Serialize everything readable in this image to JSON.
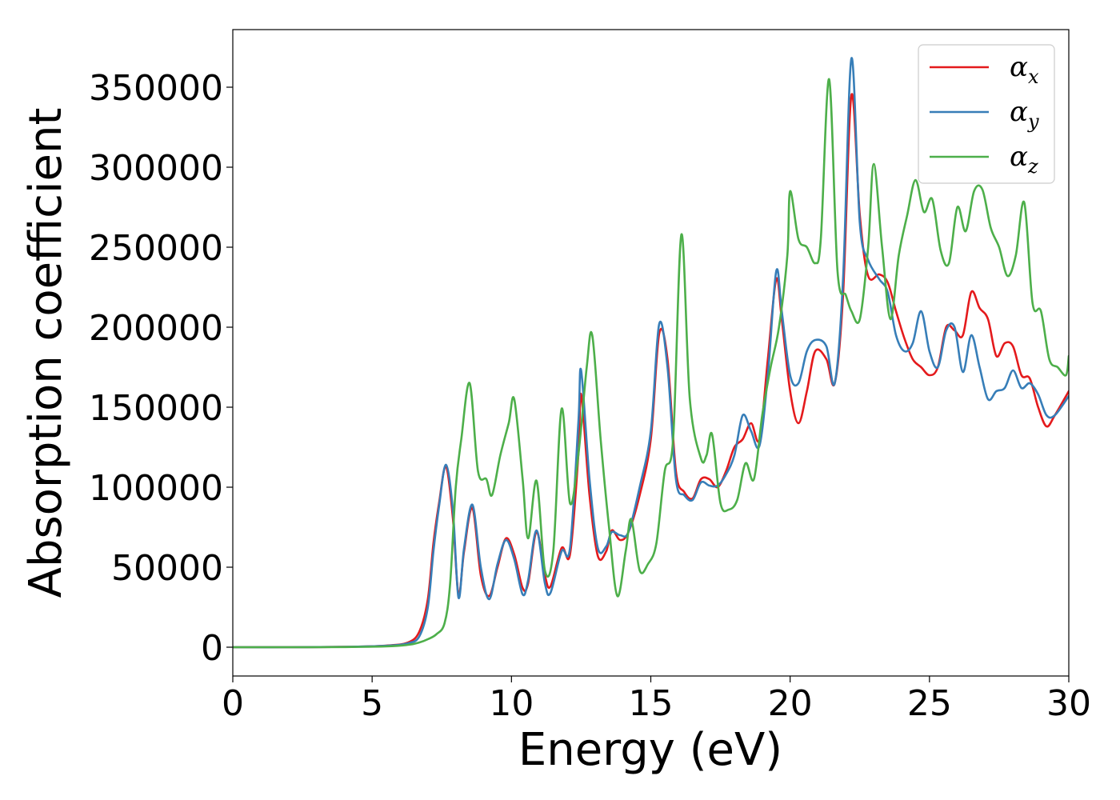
{
  "chart_data": {
    "type": "line",
    "xlabel": "Energy (eV)",
    "ylabel": "Absorption coefficient",
    "xlim": [
      0,
      30
    ],
    "ylim": [
      -18000,
      386000
    ],
    "xticks": [
      0,
      5,
      10,
      15,
      20,
      25,
      30
    ],
    "yticks": [
      0,
      50000,
      100000,
      150000,
      200000,
      250000,
      300000,
      350000
    ],
    "grid": false,
    "legend_position": "top-right",
    "series": [
      {
        "name": "α",
        "subscript": "x",
        "color": "#e41a1c",
        "x": [
          0,
          2,
          4,
          5.5,
          6.3,
          6.7,
          7.0,
          7.2,
          7.4,
          7.65,
          7.9,
          8.1,
          8.3,
          8.6,
          8.9,
          9.2,
          9.5,
          9.8,
          10.1,
          10.4,
          10.6,
          10.9,
          11.2,
          11.4,
          11.8,
          12.1,
          12.4,
          12.5,
          12.8,
          13.1,
          13.4,
          13.6,
          13.9,
          14.2,
          14.6,
          15.0,
          15.3,
          15.6,
          15.9,
          16.2,
          16.5,
          16.8,
          17.1,
          17.4,
          17.7,
          18.0,
          18.3,
          18.6,
          18.9,
          19.2,
          19.5,
          19.7,
          20.0,
          20.3,
          20.6,
          20.9,
          21.3,
          21.6,
          21.9,
          22.2,
          22.5,
          22.8,
          23.2,
          23.5,
          23.8,
          24.1,
          24.4,
          24.7,
          25.0,
          25.3,
          25.6,
          25.9,
          26.2,
          26.5,
          26.8,
          27.1,
          27.4,
          27.7,
          28.0,
          28.3,
          28.6,
          28.9,
          29.2,
          29.5,
          30
        ],
        "values": [
          0,
          0,
          200,
          1000,
          3000,
          10000,
          30000,
          65000,
          90000,
          113000,
          80000,
          33000,
          60000,
          87000,
          45000,
          32000,
          50000,
          68000,
          58000,
          37000,
          40000,
          72000,
          45000,
          38000,
          62000,
          58000,
          120000,
          158000,
          95000,
          57000,
          60000,
          73000,
          67000,
          72000,
          95000,
          130000,
          196000,
          180000,
          110000,
          97000,
          93000,
          105000,
          105000,
          100000,
          110000,
          125000,
          130000,
          140000,
          130000,
          180000,
          230000,
          205000,
          160000,
          140000,
          160000,
          185000,
          180000,
          165000,
          220000,
          345000,
          270000,
          232000,
          233000,
          228000,
          210000,
          193000,
          180000,
          175000,
          170000,
          175000,
          200000,
          198000,
          195000,
          222000,
          212000,
          205000,
          182000,
          190000,
          188000,
          170000,
          168000,
          150000,
          138000,
          145000,
          160000
        ]
      },
      {
        "name": "α",
        "subscript": "y",
        "color": "#377eb8",
        "x": [
          0,
          2,
          4,
          5.5,
          6.3,
          6.7,
          7.0,
          7.2,
          7.4,
          7.65,
          7.9,
          8.1,
          8.3,
          8.6,
          8.9,
          9.2,
          9.5,
          9.8,
          10.1,
          10.4,
          10.6,
          10.9,
          11.2,
          11.4,
          11.8,
          12.1,
          12.4,
          12.5,
          12.8,
          13.1,
          13.4,
          13.6,
          13.9,
          14.2,
          14.6,
          15.0,
          15.3,
          15.6,
          15.9,
          16.2,
          16.5,
          16.8,
          17.1,
          17.4,
          17.7,
          18.0,
          18.3,
          18.6,
          18.9,
          19.2,
          19.5,
          19.7,
          20.0,
          20.3,
          20.6,
          20.9,
          21.3,
          21.6,
          21.9,
          22.2,
          22.5,
          22.8,
          23.2,
          23.5,
          23.8,
          24.1,
          24.4,
          24.7,
          25.0,
          25.3,
          25.6,
          25.9,
          26.2,
          26.5,
          26.8,
          27.1,
          27.4,
          27.7,
          28.0,
          28.3,
          28.6,
          28.9,
          29.2,
          29.5,
          30
        ],
        "values": [
          0,
          0,
          200,
          900,
          2500,
          7000,
          25000,
          60000,
          88000,
          114000,
          85000,
          31000,
          62000,
          89000,
          50000,
          30000,
          52000,
          67000,
          55000,
          33000,
          42000,
          73000,
          40000,
          34000,
          60000,
          62000,
          140000,
          173000,
          105000,
          62000,
          63000,
          72000,
          70000,
          72000,
          100000,
          135000,
          202000,
          175000,
          105000,
          95000,
          92000,
          103000,
          101000,
          101000,
          108000,
          120000,
          145000,
          135000,
          126000,
          170000,
          235000,
          210000,
          170000,
          165000,
          185000,
          192000,
          188000,
          165000,
          230000,
          368000,
          265000,
          242000,
          230000,
          222000,
          195000,
          185000,
          190000,
          210000,
          185000,
          175000,
          198000,
          200000,
          172000,
          195000,
          175000,
          155000,
          160000,
          162000,
          173000,
          162000,
          165000,
          158000,
          145000,
          145000,
          157000
        ]
      },
      {
        "name": "α",
        "subscript": "z",
        "color": "#4daf4a",
        "x": [
          0,
          2,
          4,
          5.5,
          6.3,
          6.7,
          7.0,
          7.3,
          7.6,
          7.8,
          8.0,
          8.2,
          8.5,
          8.8,
          9.1,
          9.3,
          9.6,
          9.9,
          10.1,
          10.4,
          10.6,
          10.9,
          11.2,
          11.5,
          11.8,
          12.1,
          12.4,
          12.7,
          12.9,
          13.2,
          13.5,
          13.8,
          14.1,
          14.3,
          14.6,
          14.9,
          15.2,
          15.5,
          15.8,
          16.1,
          16.4,
          16.8,
          17.0,
          17.2,
          17.5,
          17.8,
          18.1,
          18.4,
          18.7,
          19.0,
          19.3,
          19.6,
          19.9,
          20.0,
          20.3,
          20.6,
          20.9,
          21.1,
          21.4,
          21.7,
          22.0,
          22.2,
          22.5,
          22.8,
          23.0,
          23.3,
          23.6,
          23.9,
          24.2,
          24.5,
          24.8,
          25.1,
          25.4,
          25.7,
          26.0,
          26.3,
          26.6,
          26.9,
          27.2,
          27.5,
          27.8,
          28.1,
          28.4,
          28.7,
          29.0,
          29.3,
          29.6,
          29.9,
          30
        ],
        "values": [
          0,
          0,
          100,
          500,
          1500,
          3000,
          5000,
          8000,
          15000,
          40000,
          100000,
          130000,
          165000,
          110000,
          105000,
          95000,
          120000,
          140000,
          155000,
          105000,
          68000,
          104000,
          48000,
          60000,
          149000,
          90000,
          120000,
          175000,
          195000,
          130000,
          75000,
          32000,
          60000,
          80000,
          48000,
          52000,
          65000,
          110000,
          130000,
          258000,
          155000,
          118000,
          120000,
          133000,
          90000,
          86000,
          92000,
          115000,
          105000,
          145000,
          175000,
          200000,
          245000,
          285000,
          255000,
          250000,
          240000,
          255000,
          355000,
          235000,
          220000,
          210000,
          205000,
          250000,
          302000,
          250000,
          205000,
          245000,
          270000,
          292000,
          272000,
          280000,
          248000,
          240000,
          275000,
          260000,
          285000,
          286000,
          262000,
          250000,
          232000,
          245000,
          278000,
          215000,
          210000,
          180000,
          175000,
          170000,
          182000
        ]
      }
    ]
  }
}
